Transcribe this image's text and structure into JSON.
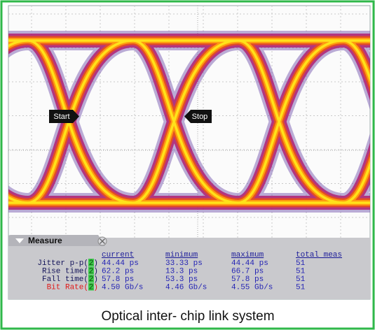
{
  "markers": {
    "start": "Start",
    "stop": "Stop"
  },
  "measure": {
    "title": "Measure",
    "headers": [
      "current",
      "minimum",
      "maximum",
      "total meas"
    ],
    "rows": [
      {
        "label": "Jitter p-p(",
        "channel": "2",
        "close": ")",
        "current": "44.44 ps",
        "minimum": "33.33 ps",
        "maximum": "44.44 ps",
        "total": "51"
      },
      {
        "label": "Rise time(",
        "channel": "2",
        "close": ")",
        "current": "62.2 ps",
        "minimum": "13.3 ps",
        "maximum": "66.7 ps",
        "total": "51"
      },
      {
        "label": "Fall time(",
        "channel": "2",
        "close": ")",
        "current": "57.8 ps",
        "minimum": "53.3 ps",
        "maximum": "57.8 ps",
        "total": "51"
      },
      {
        "label": "Bit Rate(",
        "channel": "2",
        "close": ")",
        "current": "4.50 Gb/s",
        "minimum": "4.46 Gb/s",
        "maximum": "4.55 Gb/s",
        "total": "51"
      }
    ]
  },
  "caption": "Optical inter- chip link system"
}
